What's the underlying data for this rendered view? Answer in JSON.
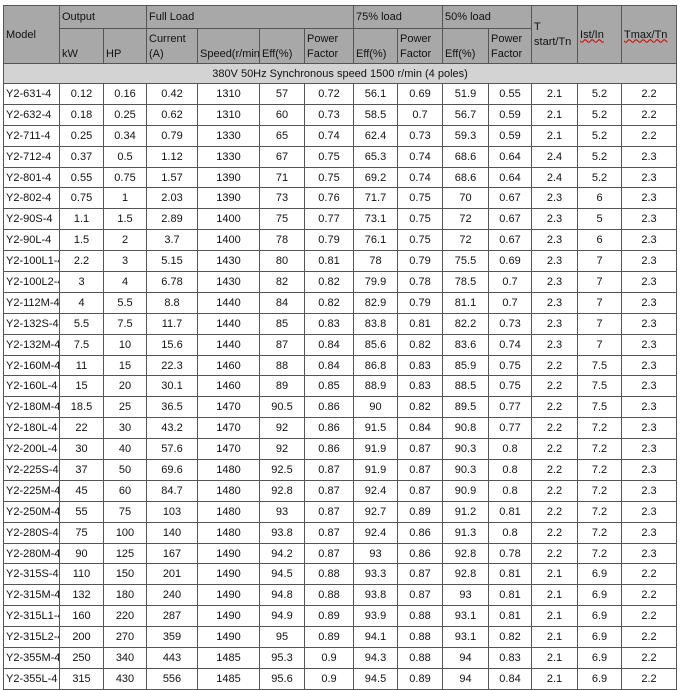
{
  "header": {
    "model": "Model",
    "output": "Output",
    "full_load": "Full Load",
    "load75": "75% load",
    "load50": "50% load",
    "kw": "kW",
    "hp": "HP",
    "current": "Current (A)",
    "speed": "Speed(r/min)",
    "eff": "Eff(%)",
    "pf": "Power Factor",
    "eff75": "Eff(%)",
    "pf75": "Power Factor",
    "eff50": "Eff(%)",
    "pf50": "Power Factor",
    "tstart": "T start/Tn",
    "ist": "Ist/In",
    "tmax": "Tmax/Tn"
  },
  "subheader": "380V   50Hz Synchronous speed 1500 r/min (4 poles)",
  "rows": [
    [
      "Y2-631-4",
      "0.12",
      "0.16",
      "0.42",
      "1310",
      "57",
      "0.72",
      "56.1",
      "0.69",
      "51.9",
      "0.55",
      "2.1",
      "5.2",
      "2.2"
    ],
    [
      "Y2-632-4",
      "0.18",
      "0.25",
      "0.62",
      "1310",
      "60",
      "0.73",
      "58.5",
      "0.7",
      "56.7",
      "0.59",
      "2.1",
      "5.2",
      "2.2"
    ],
    [
      "Y2-711-4",
      "0.25",
      "0.34",
      "0.79",
      "1330",
      "65",
      "0.74",
      "62.4",
      "0.73",
      "59.3",
      "0.59",
      "2.1",
      "5.2",
      "2.2"
    ],
    [
      "Y2-712-4",
      "0.37",
      "0.5",
      "1.12",
      "1330",
      "67",
      "0.75",
      "65.3",
      "0.74",
      "68.6",
      "0.64",
      "2.4",
      "5.2",
      "2.3"
    ],
    [
      "Y2-801-4",
      "0.55",
      "0.75",
      "1.57",
      "1390",
      "71",
      "0.75",
      "69.2",
      "0.74",
      "68.6",
      "0.64",
      "2.4",
      "5.2",
      "2.3"
    ],
    [
      "Y2-802-4",
      "0.75",
      "1",
      "2.03",
      "1390",
      "73",
      "0.76",
      "71.7",
      "0.75",
      "70",
      "0.67",
      "2.3",
      "6",
      "2.3"
    ],
    [
      "Y2-90S-4",
      "1.1",
      "1.5",
      "2.89",
      "1400",
      "75",
      "0.77",
      "73.1",
      "0.75",
      "72",
      "0.67",
      "2.3",
      "5",
      "2.3"
    ],
    [
      "Y2-90L-4",
      "1.5",
      "2",
      "3.7",
      "1400",
      "78",
      "0.79",
      "76.1",
      "0.75",
      "72",
      "0.67",
      "2.3",
      "6",
      "2.3"
    ],
    [
      "Y2-100L1-4",
      "2.2",
      "3",
      "5.15",
      "1430",
      "80",
      "0.81",
      "78",
      "0.79",
      "75.5",
      "0.69",
      "2.3",
      "7",
      "2.3"
    ],
    [
      "Y2-100L2-4",
      "3",
      "4",
      "6.78",
      "1430",
      "82",
      "0.82",
      "79.9",
      "0.78",
      "78.5",
      "0.7",
      "2.3",
      "7",
      "2.3"
    ],
    [
      "Y2-112M-4",
      "4",
      "5.5",
      "8.8",
      "1440",
      "84",
      "0.82",
      "82.9",
      "0.79",
      "81.1",
      "0.7",
      "2.3",
      "7",
      "2.3"
    ],
    [
      "Y2-132S-4",
      "5.5",
      "7.5",
      "11.7",
      "1440",
      "85",
      "0.83",
      "83.8",
      "0.81",
      "82.2",
      "0.73",
      "2.3",
      "7",
      "2.3"
    ],
    [
      "Y2-132M-4",
      "7.5",
      "10",
      "15.6",
      "1440",
      "87",
      "0.84",
      "85.6",
      "0.82",
      "83.6",
      "0.74",
      "2.3",
      "7",
      "2.3"
    ],
    [
      "Y2-160M-4",
      "11",
      "15",
      "22.3",
      "1460",
      "88",
      "0.84",
      "86.8",
      "0.83",
      "85.9",
      "0.75",
      "2.2",
      "7.5",
      "2.3"
    ],
    [
      "Y2-160L-4",
      "15",
      "20",
      "30.1",
      "1460",
      "89",
      "0.85",
      "88.9",
      "0.83",
      "88.5",
      "0.75",
      "2.2",
      "7.5",
      "2.3"
    ],
    [
      "Y2-180M-4",
      "18.5",
      "25",
      "36.5",
      "1470",
      "90.5",
      "0.86",
      "90",
      "0.82",
      "89.5",
      "0.77",
      "2.2",
      "7.5",
      "2.3"
    ],
    [
      "Y2-180L-4",
      "22",
      "30",
      "43.2",
      "1470",
      "92",
      "0.86",
      "91.5",
      "0.84",
      "90.8",
      "0.77",
      "2.2",
      "7.2",
      "2.3"
    ],
    [
      "Y2-200L-4",
      "30",
      "40",
      "57.6",
      "1470",
      "92",
      "0.86",
      "91.9",
      "0.87",
      "90.3",
      "0.8",
      "2.2",
      "7.2",
      "2.3"
    ],
    [
      "Y2-225S-4",
      "37",
      "50",
      "69.6",
      "1480",
      "92.5",
      "0.87",
      "91.9",
      "0.87",
      "90.3",
      "0.8",
      "2.2",
      "7.2",
      "2.3"
    ],
    [
      "Y2-225M-4",
      "45",
      "60",
      "84.7",
      "1480",
      "92.8",
      "0.87",
      "92.4",
      "0.87",
      "90.9",
      "0.8",
      "2.2",
      "7.2",
      "2.3"
    ],
    [
      "Y2-250M-4",
      "55",
      "75",
      "103",
      "1480",
      "93",
      "0.87",
      "92.7",
      "0.89",
      "91.2",
      "0.81",
      "2.2",
      "7.2",
      "2.3"
    ],
    [
      "Y2-280S-4",
      "75",
      "100",
      "140",
      "1480",
      "93.8",
      "0.87",
      "92.4",
      "0.86",
      "91.3",
      "0.8",
      "2.2",
      "7.2",
      "2.3"
    ],
    [
      "Y2-280M-4",
      "90",
      "125",
      "167",
      "1490",
      "94.2",
      "0.87",
      "93",
      "0.86",
      "92.8",
      "0.78",
      "2.2",
      "7.2",
      "2.3"
    ],
    [
      "Y2-315S-4",
      "110",
      "150",
      "201",
      "1490",
      "94.5",
      "0.88",
      "93.3",
      "0.87",
      "92.8",
      "0.81",
      "2.1",
      "6.9",
      "2.2"
    ],
    [
      "Y2-315M-4",
      "132",
      "180",
      "240",
      "1490",
      "94.8",
      "0.88",
      "93.8",
      "0.87",
      "93",
      "0.81",
      "2.1",
      "6.9",
      "2.2"
    ],
    [
      "Y2-315L1-4",
      "160",
      "220",
      "287",
      "1490",
      "94.9",
      "0.89",
      "93.9",
      "0.88",
      "93.1",
      "0.81",
      "2.1",
      "6.9",
      "2.2"
    ],
    [
      "Y2-315L2-4",
      "200",
      "270",
      "359",
      "1490",
      "95",
      "0.89",
      "94.1",
      "0.88",
      "93.1",
      "0.82",
      "2.1",
      "6.9",
      "2.2"
    ],
    [
      "Y2-355M-4",
      "250",
      "340",
      "443",
      "1485",
      "95.3",
      "0.9",
      "94.3",
      "0.88",
      "94",
      "0.83",
      "2.1",
      "6.9",
      "2.2"
    ],
    [
      "Y2-355L-4",
      "315",
      "430",
      "556",
      "1485",
      "95.6",
      "0.9",
      "94.5",
      "0.89",
      "94",
      "0.84",
      "2.1",
      "6.9",
      "2.2"
    ]
  ]
}
